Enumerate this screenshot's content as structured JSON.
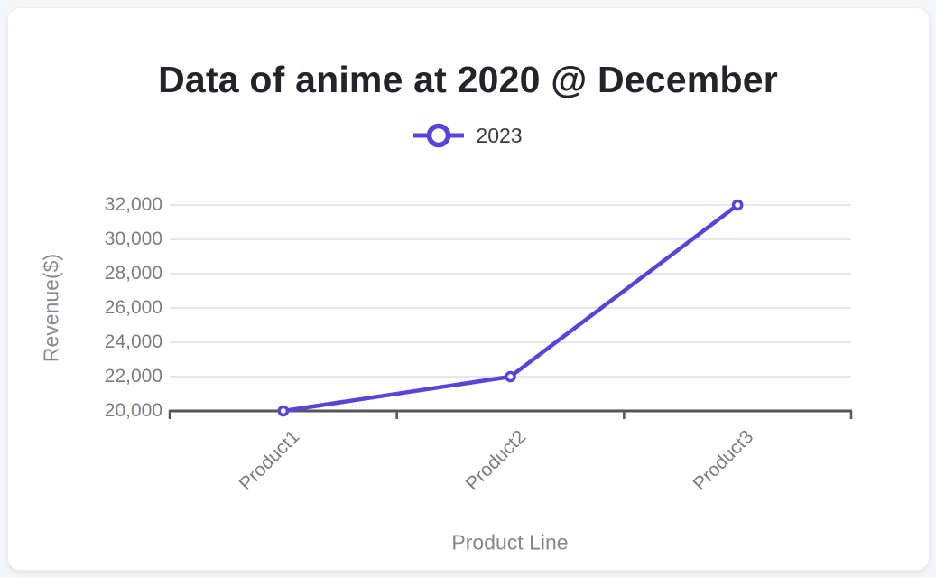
{
  "chart_data": {
    "type": "line",
    "title": "Data of anime at 2020 @ December",
    "categories": [
      "Product1",
      "Product2",
      "Product3"
    ],
    "series": [
      {
        "name": "2023",
        "values": [
          20000,
          22000,
          32000
        ],
        "color": "#5a43d8"
      }
    ],
    "xlabel": "Product Line",
    "ylabel": "Revenue($)",
    "ylim": [
      20000,
      32000
    ],
    "ytick_step": 2000,
    "ytick_labels": [
      "32,000",
      "30,000",
      "28,000",
      "26,000",
      "24,000",
      "22,000",
      "20,000"
    ],
    "grid": "horizontal-only",
    "legend_position": "top",
    "marker": "hollow-circle"
  },
  "theme": {
    "accent": "#5a43d8",
    "grid_color": "#e5e6f1",
    "axis_color": "#55565c",
    "tick_text_color": "#7b7c81",
    "axis_title_color": "#85868a",
    "title_color": "#232329",
    "card_bg": "#ffffff",
    "page_bg": "#f5f6f8"
  }
}
